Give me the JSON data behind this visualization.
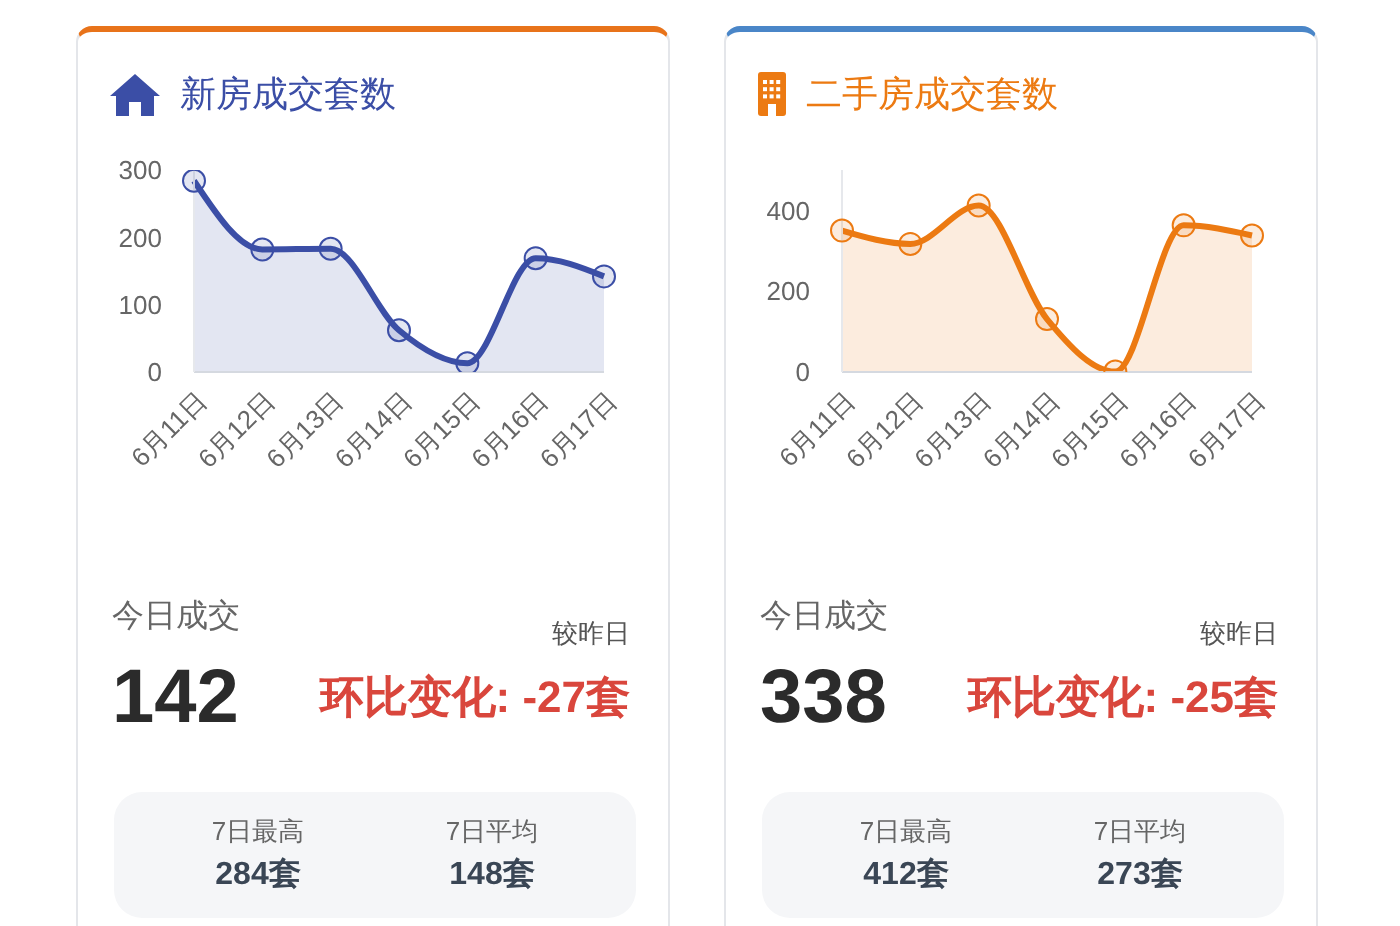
{
  "chart_data": [
    {
      "type": "area",
      "title": "新房成交套数",
      "categories": [
        "6月11日",
        "6月12日",
        "6月13日",
        "6月14日",
        "6月15日",
        "6月16日",
        "6月17日"
      ],
      "series": [
        {
          "color": "#3b4ea6",
          "values": [
            284,
            182,
            183,
            62,
            13,
            169,
            142
          ]
        }
      ],
      "ylim": [
        0,
        300
      ],
      "yticks": [
        0,
        100,
        200,
        300
      ],
      "marker": "circle",
      "annotations": [
        "今日成交",
        "142",
        "较昨日",
        "环比变化: -27套",
        "7日最高",
        "284套",
        "7日平均",
        "148套"
      ]
    },
    {
      "type": "area",
      "title": "二手房成交套数",
      "categories": [
        "6月11日",
        "6月12日",
        "6月13日",
        "6月14日",
        "6月15日",
        "6月16日",
        "6月17日"
      ],
      "series": [
        {
          "color": "#ec7a12",
          "values": [
            350,
            317,
            412,
            131,
            1,
            363,
            338
          ]
        }
      ],
      "ylim": [
        0,
        500
      ],
      "yticks": [
        0,
        200,
        400
      ],
      "marker": "circle",
      "annotations": [
        "今日成交",
        "338",
        "较昨日",
        "环比变化: -25套",
        "7日最高",
        "412套",
        "7日平均",
        "273套"
      ]
    }
  ]
}
